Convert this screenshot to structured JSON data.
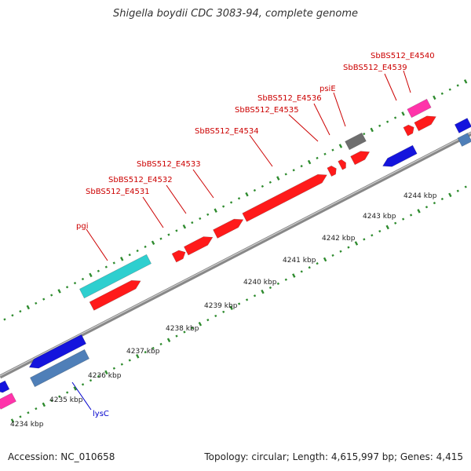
{
  "title": "Shigella boydii CDC 3083-94, complete genome",
  "footer": {
    "accession": "Accession: NC_010658",
    "summary": "Topology: circular; Length: 4,615,997 bp; Genes: 4,415"
  },
  "colors": {
    "backbone": "#888888",
    "tick": "#2e8b2e",
    "label_red": "#cc0000",
    "label_blue": "#0000cc",
    "cds_forward": "#ff1a1a",
    "cds_reverse": "#1414dd",
    "rrna": "#2ecfcf",
    "trna": "#ff33aa",
    "misc": "#4f7fb8",
    "pseudo": "#6e6e6e"
  },
  "scale_labels": [
    "4234 kbp",
    "4235 kbp",
    "4236 kbp",
    "4237 kbp",
    "4238 kbp",
    "4239 kbp",
    "4240 kbp",
    "4241 kbp",
    "4242 kbp",
    "4243 kbp",
    "4244 kbp"
  ],
  "gene_labels": [
    {
      "text": "SbBS512_E4540",
      "color": "red"
    },
    {
      "text": "SbBS512_E4539",
      "color": "red"
    },
    {
      "text": "psiE",
      "color": "red"
    },
    {
      "text": "SbBS512_E4536",
      "color": "red"
    },
    {
      "text": "SbBS512_E4535",
      "color": "red"
    },
    {
      "text": "SbBS512_E4534",
      "color": "red"
    },
    {
      "text": "SbBS512_E4533",
      "color": "red"
    },
    {
      "text": "SbBS512_E4532",
      "color": "red"
    },
    {
      "text": "SbBS512_E4531",
      "color": "red"
    },
    {
      "text": "pgi",
      "color": "red"
    },
    {
      "text": "lysC",
      "color": "blue"
    }
  ]
}
